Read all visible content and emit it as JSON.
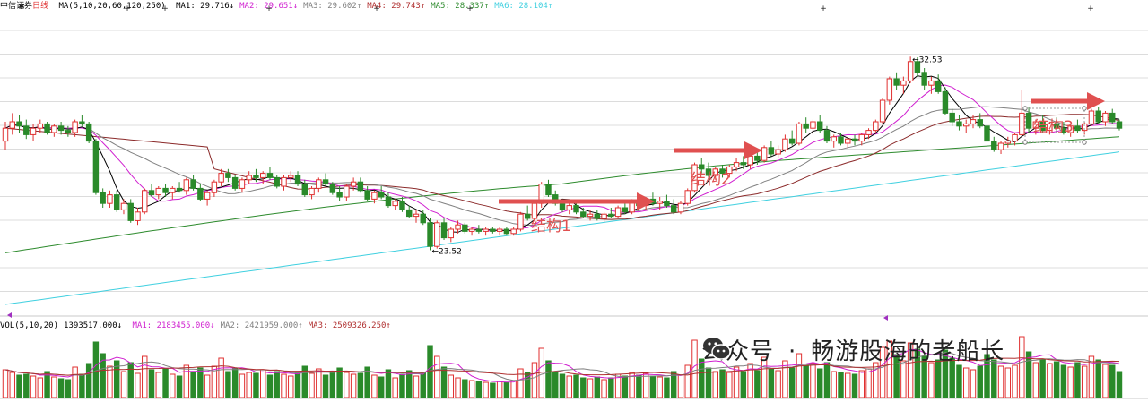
{
  "header": {
    "stock_name": "中信证券",
    "period": "日线",
    "ma_params": "MA(5,10,20,60,120,250)",
    "ma_values": [
      {
        "label": "MA1:",
        "value": "29.716",
        "arrow": "↓",
        "color": "#000000"
      },
      {
        "label": "MA2:",
        "value": "29.651",
        "arrow": "↓",
        "color": "#d020d0"
      },
      {
        "label": "MA3:",
        "value": "29.602",
        "arrow": "↑",
        "color": "#808080"
      },
      {
        "label": "MA4:",
        "value": "29.743",
        "arrow": "↑",
        "color": "#b03030"
      },
      {
        "label": "MA5:",
        "value": "28.337",
        "arrow": "↑",
        "color": "#2e8b2e"
      },
      {
        "label": "MA6:",
        "value": "28.104",
        "arrow": "↑",
        "color": "#40d0e0"
      }
    ]
  },
  "volume_header": {
    "params": "VOL(5,10,20)",
    "vol_value": "1393517.000",
    "vol_arrow": "↓",
    "ma_values": [
      {
        "label": "MA1:",
        "value": "2183455.000",
        "arrow": "↓",
        "color": "#d020d0"
      },
      {
        "label": "MA2:",
        "value": "2421959.000",
        "arrow": "↑",
        "color": "#808080"
      },
      {
        "label": "MA3:",
        "value": "2509326.250",
        "arrow": "↑",
        "color": "#b03030"
      }
    ]
  },
  "colors": {
    "up": "#e03030",
    "down": "#2a8a2a",
    "ma5": "#000000",
    "ma10": "#d020d0",
    "ma20": "#808080",
    "ma60": "#8b2a2a",
    "ma120": "#2e8b2e",
    "ma250": "#40d0e0",
    "annotation": "#e05050"
  },
  "chart_data": {
    "type": "candlestick",
    "price_range": [
      20.5,
      34.5
    ],
    "low_label": "23.52",
    "high_label": "32.53",
    "structures": [
      {
        "label": "结构1"
      },
      {
        "label": "结构2"
      },
      {
        "label": "结构3"
      }
    ],
    "candles": [
      [
        28.6,
        29.5,
        28.2,
        29.2
      ],
      [
        29.2,
        29.9,
        28.9,
        29.5
      ],
      [
        29.5,
        29.8,
        29.0,
        29.3
      ],
      [
        29.3,
        29.6,
        28.7,
        28.9
      ],
      [
        28.9,
        29.4,
        28.6,
        29.2
      ],
      [
        29.2,
        29.6,
        29.0,
        29.4
      ],
      [
        29.4,
        29.5,
        28.9,
        29.0
      ],
      [
        29.0,
        29.4,
        28.8,
        29.3
      ],
      [
        29.3,
        29.5,
        28.9,
        29.1
      ],
      [
        29.1,
        29.3,
        28.8,
        29.0
      ],
      [
        29.0,
        29.6,
        28.8,
        29.5
      ],
      [
        29.5,
        29.8,
        29.3,
        29.4
      ],
      [
        29.4,
        29.5,
        28.5,
        28.6
      ],
      [
        28.6,
        28.7,
        26.1,
        26.2
      ],
      [
        26.2,
        26.4,
        25.5,
        25.7
      ],
      [
        25.7,
        26.3,
        25.5,
        26.1
      ],
      [
        26.1,
        26.3,
        25.3,
        25.4
      ],
      [
        25.4,
        25.9,
        25.2,
        25.7
      ],
      [
        25.7,
        25.9,
        24.8,
        24.9
      ],
      [
        24.9,
        25.5,
        24.7,
        25.3
      ],
      [
        25.3,
        26.4,
        25.2,
        26.3
      ],
      [
        26.3,
        26.6,
        26.0,
        26.1
      ],
      [
        26.1,
        26.5,
        25.9,
        26.4
      ],
      [
        26.4,
        26.6,
        26.0,
        26.2
      ],
      [
        26.2,
        26.5,
        25.9,
        26.4
      ],
      [
        26.4,
        26.7,
        26.2,
        26.3
      ],
      [
        26.3,
        26.9,
        26.1,
        26.8
      ],
      [
        26.8,
        27.0,
        26.3,
        26.4
      ],
      [
        26.4,
        26.6,
        25.8,
        25.9
      ],
      [
        25.9,
        26.3,
        25.6,
        26.2
      ],
      [
        26.2,
        26.8,
        26.0,
        26.7
      ],
      [
        26.7,
        27.3,
        26.5,
        27.1
      ],
      [
        27.1,
        27.3,
        26.7,
        26.9
      ],
      [
        26.9,
        27.0,
        26.3,
        26.4
      ],
      [
        26.4,
        26.9,
        26.2,
        26.8
      ],
      [
        26.8,
        27.2,
        26.6,
        27.0
      ],
      [
        27.0,
        27.3,
        26.7,
        26.9
      ],
      [
        26.9,
        27.2,
        26.6,
        27.1
      ],
      [
        27.1,
        27.4,
        26.8,
        26.9
      ],
      [
        26.9,
        27.0,
        26.4,
        26.5
      ],
      [
        26.5,
        27.0,
        26.3,
        26.9
      ],
      [
        26.9,
        27.2,
        26.7,
        27.0
      ],
      [
        27.0,
        27.2,
        26.5,
        26.6
      ],
      [
        26.6,
        26.8,
        26.0,
        26.1
      ],
      [
        26.1,
        26.5,
        25.9,
        26.4
      ],
      [
        26.4,
        26.9,
        26.2,
        26.8
      ],
      [
        26.8,
        27.1,
        26.5,
        26.6
      ],
      [
        26.6,
        26.7,
        26.1,
        26.2
      ],
      [
        26.2,
        26.5,
        25.8,
        26.0
      ],
      [
        26.0,
        26.6,
        25.8,
        26.5
      ],
      [
        26.5,
        26.9,
        26.3,
        26.7
      ],
      [
        26.7,
        26.9,
        26.2,
        26.3
      ],
      [
        26.3,
        26.5,
        25.8,
        25.9
      ],
      [
        25.9,
        26.3,
        25.7,
        26.2
      ],
      [
        26.2,
        26.5,
        25.9,
        26.0
      ],
      [
        26.0,
        26.2,
        25.5,
        25.6
      ],
      [
        25.6,
        25.9,
        25.4,
        25.8
      ],
      [
        25.8,
        26.0,
        25.3,
        25.4
      ],
      [
        25.4,
        25.6,
        25.0,
        25.1
      ],
      [
        25.1,
        25.4,
        24.8,
        25.2
      ],
      [
        25.2,
        25.4,
        24.7,
        24.8
      ],
      [
        24.8,
        25.0,
        23.52,
        23.7
      ],
      [
        23.7,
        24.9,
        23.6,
        24.8
      ],
      [
        24.8,
        25.0,
        24.0,
        24.1
      ],
      [
        24.1,
        24.6,
        23.9,
        24.5
      ],
      [
        24.5,
        24.9,
        24.3,
        24.7
      ],
      [
        24.7,
        24.8,
        24.3,
        24.4
      ],
      [
        24.4,
        24.6,
        24.2,
        24.5
      ],
      [
        24.5,
        24.7,
        24.3,
        24.4
      ],
      [
        24.4,
        24.6,
        24.2,
        24.5
      ],
      [
        24.5,
        24.6,
        24.3,
        24.4
      ],
      [
        24.4,
        24.6,
        24.2,
        24.5
      ],
      [
        24.5,
        24.6,
        24.2,
        24.3
      ],
      [
        24.3,
        24.6,
        24.2,
        24.5
      ],
      [
        24.5,
        25.3,
        24.4,
        25.2
      ],
      [
        25.2,
        25.6,
        24.9,
        25.0
      ],
      [
        25.0,
        25.8,
        24.9,
        25.7
      ],
      [
        25.7,
        26.7,
        25.5,
        26.6
      ],
      [
        26.6,
        26.8,
        26.0,
        26.1
      ],
      [
        26.1,
        26.3,
        25.6,
        25.7
      ],
      [
        25.7,
        25.9,
        25.3,
        25.4
      ],
      [
        25.4,
        25.8,
        25.2,
        25.6
      ],
      [
        25.6,
        25.8,
        25.2,
        25.3
      ],
      [
        25.3,
        25.5,
        25.0,
        25.1
      ],
      [
        25.1,
        25.4,
        24.9,
        25.2
      ],
      [
        25.2,
        25.4,
        24.9,
        25.0
      ],
      [
        25.0,
        25.3,
        24.8,
        25.2
      ],
      [
        25.2,
        25.5,
        25.0,
        25.1
      ],
      [
        25.1,
        25.6,
        25.0,
        25.5
      ],
      [
        25.5,
        25.8,
        25.2,
        25.3
      ],
      [
        25.3,
        25.9,
        25.2,
        25.8
      ],
      [
        25.8,
        26.1,
        25.5,
        25.6
      ],
      [
        25.6,
        26.0,
        25.4,
        25.9
      ],
      [
        25.9,
        26.2,
        25.6,
        25.7
      ],
      [
        25.7,
        26.0,
        25.4,
        25.8
      ],
      [
        25.8,
        26.1,
        25.5,
        25.6
      ],
      [
        25.6,
        25.9,
        25.2,
        25.3
      ],
      [
        25.3,
        25.8,
        25.2,
        25.7
      ],
      [
        25.7,
        26.4,
        25.6,
        26.3
      ],
      [
        26.3,
        27.6,
        26.2,
        27.5
      ],
      [
        27.5,
        27.8,
        27.1,
        27.3
      ],
      [
        27.3,
        27.6,
        26.9,
        27.0
      ],
      [
        27.0,
        27.4,
        26.8,
        27.3
      ],
      [
        27.3,
        27.5,
        26.9,
        27.1
      ],
      [
        27.1,
        27.5,
        26.9,
        27.4
      ],
      [
        27.4,
        27.8,
        27.2,
        27.6
      ],
      [
        27.6,
        27.9,
        27.3,
        27.5
      ],
      [
        27.5,
        28.0,
        27.3,
        27.9
      ],
      [
        27.9,
        28.1,
        27.5,
        27.7
      ],
      [
        27.7,
        28.4,
        27.6,
        28.3
      ],
      [
        28.3,
        28.6,
        27.9,
        28.0
      ],
      [
        28.0,
        28.4,
        27.8,
        28.2
      ],
      [
        28.2,
        28.9,
        28.1,
        28.7
      ],
      [
        28.7,
        29.1,
        28.4,
        28.5
      ],
      [
        28.5,
        29.5,
        28.4,
        29.4
      ],
      [
        29.4,
        29.7,
        29.0,
        29.2
      ],
      [
        29.2,
        29.6,
        28.9,
        29.5
      ],
      [
        29.5,
        29.8,
        29.0,
        29.1
      ],
      [
        29.1,
        29.3,
        28.5,
        28.6
      ],
      [
        28.6,
        28.9,
        28.3,
        28.8
      ],
      [
        28.8,
        29.0,
        28.4,
        28.5
      ],
      [
        28.5,
        28.8,
        28.3,
        28.7
      ],
      [
        28.7,
        28.9,
        28.4,
        28.6
      ],
      [
        28.6,
        29.0,
        28.4,
        28.9
      ],
      [
        28.9,
        29.2,
        28.7,
        29.1
      ],
      [
        29.1,
        29.6,
        29.0,
        29.5
      ],
      [
        29.5,
        30.6,
        29.4,
        30.5
      ],
      [
        30.5,
        31.6,
        30.3,
        31.5
      ],
      [
        31.5,
        31.8,
        31.0,
        31.2
      ],
      [
        31.2,
        31.6,
        30.8,
        31.4
      ],
      [
        31.4,
        32.53,
        31.3,
        32.3
      ],
      [
        32.3,
        32.5,
        31.6,
        31.8
      ],
      [
        31.8,
        32.0,
        31.0,
        31.2
      ],
      [
        31.2,
        31.6,
        30.8,
        31.4
      ],
      [
        31.4,
        31.7,
        30.8,
        30.9
      ],
      [
        30.9,
        31.1,
        29.8,
        29.9
      ],
      [
        29.9,
        30.1,
        29.3,
        29.5
      ],
      [
        29.5,
        29.8,
        29.1,
        29.3
      ],
      [
        29.3,
        29.6,
        29.0,
        29.4
      ],
      [
        29.4,
        29.8,
        29.2,
        29.6
      ],
      [
        29.6,
        29.9,
        29.2,
        29.3
      ],
      [
        29.3,
        29.4,
        28.5,
        28.6
      ],
      [
        28.6,
        28.8,
        28.1,
        28.2
      ],
      [
        28.2,
        28.6,
        28.0,
        28.5
      ],
      [
        28.5,
        28.8,
        28.3,
        28.6
      ],
      [
        28.6,
        29.0,
        28.4,
        28.9
      ],
      [
        28.9,
        31.0,
        28.8,
        29.9
      ],
      [
        29.9,
        30.2,
        29.0,
        29.2
      ],
      [
        29.2,
        29.6,
        28.9,
        29.5
      ],
      [
        29.5,
        29.8,
        29.0,
        29.1
      ],
      [
        29.1,
        29.5,
        28.9,
        29.4
      ],
      [
        29.4,
        29.7,
        29.0,
        29.2
      ],
      [
        29.2,
        29.5,
        28.9,
        29.0
      ],
      [
        29.0,
        29.4,
        28.8,
        29.3
      ],
      [
        29.3,
        29.6,
        29.0,
        29.1
      ],
      [
        29.1,
        29.5,
        28.9,
        29.4
      ],
      [
        29.4,
        30.1,
        29.3,
        30.0
      ],
      [
        30.0,
        30.2,
        29.4,
        29.5
      ],
      [
        29.5,
        30.0,
        29.3,
        29.9
      ],
      [
        29.9,
        30.1,
        29.4,
        29.5
      ],
      [
        29.5,
        29.6,
        29.1,
        29.2
      ]
    ],
    "volumes": [
      3.1,
      2.8,
      2.5,
      2.6,
      2.4,
      2.2,
      2.9,
      2.3,
      2.1,
      2.0,
      3.4,
      2.6,
      3.8,
      6.2,
      4.9,
      3.5,
      4.1,
      2.9,
      3.9,
      2.7,
      4.6,
      3.1,
      2.8,
      3.2,
      2.6,
      2.4,
      3.6,
      2.8,
      3.3,
      2.5,
      3.5,
      4.4,
      2.9,
      3.2,
      2.6,
      2.8,
      2.7,
      3.1,
      2.5,
      2.9,
      2.6,
      2.4,
      2.8,
      3.5,
      2.7,
      3.2,
      2.5,
      2.9,
      3.3,
      2.8,
      2.6,
      2.7,
      3.4,
      2.5,
      2.3,
      3.1,
      2.2,
      2.6,
      3.0,
      2.4,
      2.8,
      5.8,
      4.6,
      3.4,
      2.5,
      2.2,
      2.0,
      1.9,
      1.8,
      1.7,
      1.6,
      1.8,
      1.7,
      1.9,
      3.2,
      2.8,
      3.9,
      5.5,
      4.1,
      2.9,
      2.6,
      2.4,
      2.5,
      2.2,
      2.1,
      2.3,
      2.0,
      2.2,
      2.6,
      2.4,
      2.8,
      2.5,
      2.7,
      2.4,
      2.3,
      2.2,
      2.9,
      2.5,
      3.6,
      6.4,
      4.3,
      3.3,
      2.9,
      3.1,
      2.8,
      3.4,
      2.9,
      3.8,
      3.0,
      4.5,
      3.2,
      3.0,
      4.1,
      3.3,
      4.9,
      3.5,
      3.8,
      3.2,
      3.9,
      2.9,
      2.8,
      2.7,
      2.6,
      3.0,
      3.2,
      3.9,
      5.6,
      6.3,
      4.8,
      4.1,
      6.1,
      5.4,
      4.6,
      3.9,
      4.2,
      5.3,
      4.4,
      3.6,
      3.3,
      3.1,
      3.5,
      4.8,
      4.2,
      3.5,
      3.3,
      3.6,
      6.8,
      5.1,
      3.9,
      4.3,
      3.8,
      4.0,
      3.6,
      3.4,
      3.9,
      3.5,
      4.6,
      4.2,
      3.7,
      3.6,
      2.9
    ]
  }
}
